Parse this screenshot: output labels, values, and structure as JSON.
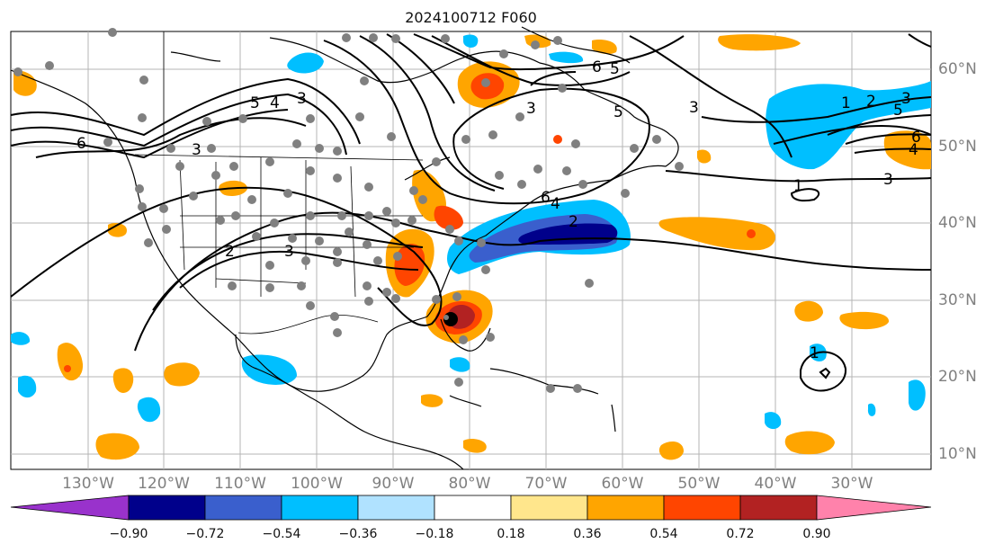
{
  "map": {
    "title": "2024100712 F060",
    "lon_labels": [
      "130°W",
      "120°W",
      "110°W",
      "100°W",
      "90°W",
      "80°W",
      "70°W",
      "60°W",
      "50°W",
      "40°W",
      "30°W"
    ],
    "lat_labels": [
      "60°N",
      "50°N",
      "40°N",
      "30°N",
      "20°N",
      "10°N"
    ],
    "contour_labels": [
      "6",
      "5",
      "4",
      "3",
      "6",
      "5",
      "3",
      "3",
      "2",
      "6",
      "5",
      "4",
      "3",
      "2",
      "1",
      "3",
      "3",
      "1",
      "1",
      "2",
      "3",
      "6",
      "5",
      "4"
    ],
    "colorbar": {
      "ticks": [
        "−0.90",
        "−0.72",
        "−0.54",
        "−0.36",
        "−0.18",
        "0.18",
        "0.36",
        "0.54",
        "0.72",
        "0.90"
      ],
      "colors": [
        "#9932cc",
        "#00008b",
        "#3a5fcd",
        "#00bfff",
        "#b0e2ff",
        "#ffffff",
        "#ffe68c",
        "#ffa500",
        "#ff4500",
        "#b22222",
        "#ff82ab"
      ]
    },
    "colors": {
      "land_line": "#000000",
      "grid": "#b4b4b4",
      "marker": "#808080",
      "contour": "#000000"
    }
  }
}
